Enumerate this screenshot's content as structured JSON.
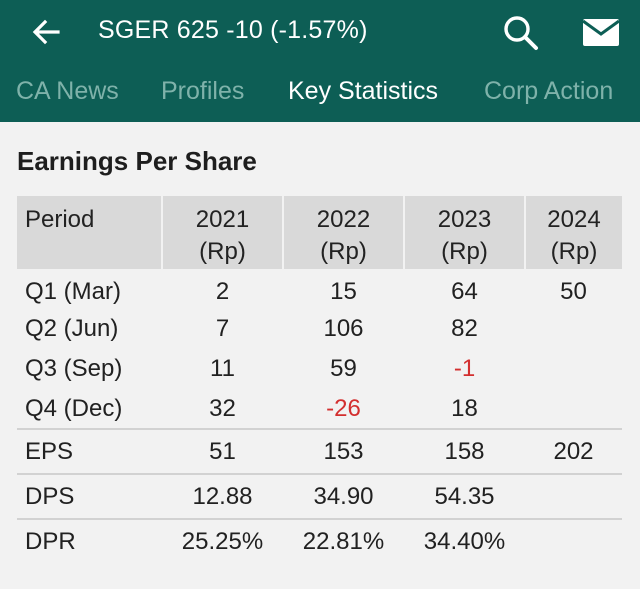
{
  "header": {
    "title": "SGER  625 -10 (-1.57%)",
    "background_color": "#0d5e55",
    "icons": {
      "back": "arrow-left-icon",
      "search": "search-icon",
      "mail": "mail-icon"
    }
  },
  "tabs": [
    {
      "label": "CA News",
      "active": false
    },
    {
      "label": "Profiles",
      "active": false
    },
    {
      "label": "Key Statistics",
      "active": true
    },
    {
      "label": "Corp Action",
      "active": false
    }
  ],
  "section": {
    "title": "Earnings Per Share"
  },
  "table": {
    "period_header": "Period",
    "year_headers": [
      {
        "year": "2021",
        "unit": "(Rp)"
      },
      {
        "year": "2022",
        "unit": "(Rp)"
      },
      {
        "year": "2023",
        "unit": "(Rp)"
      },
      {
        "year": "2024",
        "unit": "(Rp)"
      }
    ],
    "quarters": [
      {
        "label": "Q1 (Mar)",
        "values": [
          "2",
          "15",
          "64",
          "50"
        ]
      },
      {
        "label": "Q2 (Jun)",
        "values": [
          "7",
          "106",
          "82",
          ""
        ]
      },
      {
        "label": "Q3 (Sep)",
        "values": [
          "11",
          "59",
          "-1",
          ""
        ]
      },
      {
        "label": "Q4 (Dec)",
        "values": [
          "32",
          "-26",
          "18",
          ""
        ]
      }
    ],
    "summary": [
      {
        "label": "EPS",
        "values": [
          "51",
          "153",
          "158",
          "202"
        ]
      },
      {
        "label": "DPS",
        "values": [
          "12.88",
          "34.90",
          "54.35",
          ""
        ]
      },
      {
        "label": "DPR",
        "values": [
          "25.25%",
          "22.81%",
          "34.40%",
          ""
        ]
      }
    ],
    "negative_color": "#d32f2f"
  }
}
